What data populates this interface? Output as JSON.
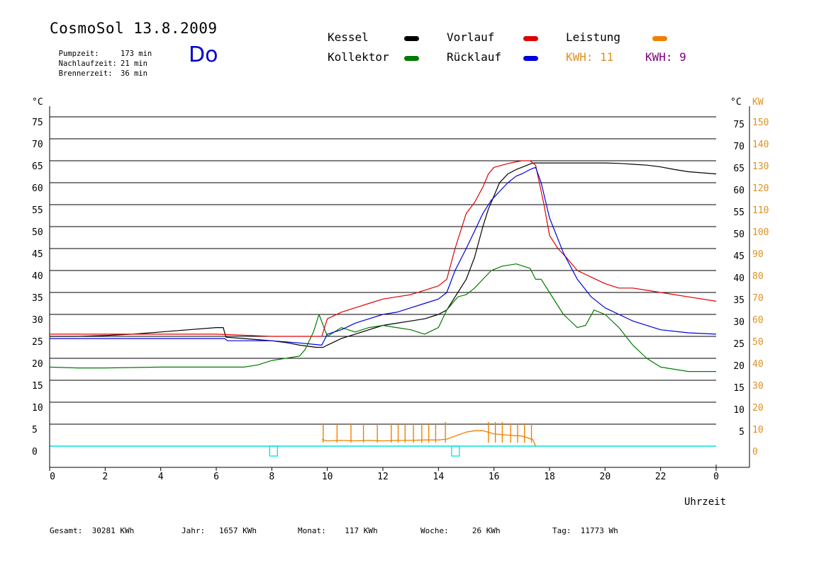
{
  "header": {
    "title": "CosmoSol 13.8.2009",
    "stats": [
      {
        "label": "Pumpzeit:",
        "value": "173 min"
      },
      {
        "label": "Nachlaufzeit:",
        "value": "21 min"
      },
      {
        "label": "Brennerzeit:",
        "value": "36 min"
      }
    ],
    "day": "Do"
  },
  "legend": {
    "kessel": "Kessel",
    "kollektor": "Kollektor",
    "vorlauf": "Vorlauf",
    "ruecklauf": "Rücklauf",
    "leistung": "Leistung",
    "kwh_orange": "KWH: 11",
    "kwh_purple": "KWH: 9"
  },
  "footer": {
    "gesamt": "Gesamt:  30281 KWh",
    "jahr": "Jahr:   1657 KWh",
    "monat": "Monat:    117 KWh",
    "woche": "Woche:     26 KWh",
    "tag": "Tag:  11773 Wh"
  },
  "colors": {
    "kessel": "#000000",
    "kollektor": "#007a00",
    "vorlauf": "#e00000",
    "ruecklauf": "#0000e0",
    "leistung": "#f08000",
    "kwh_orange": "#e09020",
    "kwh_purple": "#800080",
    "day": "#0000cc",
    "baseline": "#00e0e0",
    "right_axis": "#e09020"
  },
  "chart_data": {
    "type": "line",
    "xlabel": "Uhrzeit",
    "ylabel_left": "°C",
    "ylabel_right_temp": "°C",
    "ylabel_right_power": "KW",
    "xlim": [
      0,
      24
    ],
    "ylim": [
      0,
      80
    ],
    "x_ticks": [
      "0",
      "2",
      "4",
      "6",
      "8",
      "10",
      "12",
      "14",
      "16",
      "18",
      "20",
      "22",
      "0"
    ],
    "y_ticks_left": [
      "0",
      "5",
      "10",
      "15",
      "20",
      "25",
      "30",
      "35",
      "40",
      "45",
      "50",
      "55",
      "60",
      "65",
      "70",
      "75"
    ],
    "y_ticks_right_temp": [
      "5",
      "10",
      "15",
      "20",
      "25",
      "30",
      "35",
      "40",
      "45",
      "50",
      "55",
      "60",
      "65",
      "70",
      "75"
    ],
    "y_ticks_right_kw": [
      "0",
      "10",
      "20",
      "30",
      "40",
      "50",
      "60",
      "70",
      "80",
      "90",
      "100",
      "110",
      "120",
      "130",
      "140",
      "150"
    ],
    "grid": true,
    "series": [
      {
        "name": "Kessel",
        "x": [
          0,
          1,
          2,
          3,
          4,
          5,
          6,
          6.25,
          6.35,
          7,
          8,
          8.6,
          9,
          9.6,
          9.85,
          10,
          10.5,
          11,
          11.5,
          12,
          12.5,
          13,
          13.5,
          14,
          14.3,
          14.6,
          15,
          15.3,
          15.6,
          15.8,
          16,
          16.2,
          16.5,
          16.8,
          17,
          17.2,
          17.4,
          17.5,
          18,
          19,
          20,
          20.5,
          21,
          21.5,
          22,
          22.5,
          23,
          24
        ],
        "y": [
          25,
          25,
          25.2,
          25.5,
          26,
          26.5,
          27,
          27,
          24.8,
          24.5,
          24,
          23.5,
          23,
          22.5,
          22.5,
          23,
          24.5,
          25.5,
          26.5,
          27.5,
          28,
          28.5,
          29,
          30,
          31,
          34,
          38,
          43,
          50,
          54,
          57,
          60,
          62,
          63,
          63.5,
          64,
          64.5,
          64.5,
          64.5,
          64.5,
          64.5,
          64.4,
          64.2,
          64,
          63.6,
          63,
          62.5,
          62
        ]
      },
      {
        "name": "Kollektor",
        "x": [
          0,
          1,
          2,
          3,
          4,
          5,
          6,
          7,
          7.5,
          8,
          8.5,
          9,
          9.2,
          9.5,
          9.7,
          10,
          10.5,
          11,
          11.5,
          12,
          12.5,
          13,
          13.5,
          14,
          14.3,
          14.7,
          15,
          15.3,
          15.6,
          15.9,
          16.3,
          16.8,
          17.3,
          17.5,
          17.7,
          18,
          18.5,
          19,
          19.3,
          19.6,
          20,
          20.5,
          21,
          21.5,
          22,
          22.5,
          23,
          24
        ],
        "y": [
          18,
          17.8,
          17.8,
          17.9,
          18,
          18,
          18,
          18,
          18.5,
          19.5,
          20,
          20.5,
          22,
          26,
          30,
          25,
          27,
          26,
          27,
          27.5,
          27,
          26.5,
          25.5,
          27,
          31,
          34,
          34.5,
          36,
          38,
          40,
          41,
          41.5,
          40.5,
          38,
          38,
          35,
          30,
          27,
          27.5,
          31,
          30,
          27,
          23,
          20,
          18,
          17.5,
          17,
          17
        ]
      },
      {
        "name": "Vorlauf",
        "x": [
          0,
          2,
          4,
          6,
          8,
          9.8,
          10,
          10.5,
          11,
          11.5,
          12,
          12.5,
          13,
          13.5,
          14,
          14.3,
          14.6,
          15,
          15.3,
          15.6,
          15.8,
          16,
          16.3,
          16.6,
          17,
          17.3,
          17.5,
          17.8,
          18,
          18.3,
          18.6,
          19,
          19.5,
          20,
          20.5,
          21,
          21.5,
          22,
          22.5,
          23,
          24
        ],
        "y": [
          25.5,
          25.5,
          25.5,
          25.5,
          25,
          25,
          29,
          30.5,
          31.5,
          32.5,
          33.5,
          34,
          34.5,
          35.5,
          36.5,
          38,
          45,
          53,
          55.5,
          59,
          62,
          63.5,
          64,
          64.5,
          65,
          65,
          64,
          55,
          48,
          45,
          43,
          40,
          38.5,
          37,
          36,
          36,
          35.5,
          35,
          34.5,
          34,
          33
        ]
      },
      {
        "name": "Rücklauf",
        "x": [
          0,
          2,
          4,
          6,
          6.3,
          6.4,
          8,
          9,
          9.8,
          10,
          10.5,
          11,
          11.5,
          12,
          12.5,
          13,
          13.5,
          14,
          14.3,
          14.6,
          15,
          15.3,
          15.6,
          15.9,
          16.2,
          16.5,
          16.8,
          17,
          17.3,
          17.5,
          17.7,
          18,
          18.5,
          19,
          19.5,
          20,
          20.5,
          21,
          22,
          23,
          24
        ],
        "y": [
          24.5,
          24.5,
          24.5,
          24.5,
          24.5,
          24,
          24,
          23.5,
          23,
          25.5,
          26.5,
          28,
          29,
          30,
          30.5,
          31.5,
          32.5,
          33.5,
          35,
          40,
          45,
          49,
          53,
          56,
          58,
          60,
          61.5,
          62,
          63,
          63.5,
          60,
          52,
          44,
          38,
          34,
          31.5,
          30,
          28.5,
          26.5,
          25.8,
          25.5
        ]
      },
      {
        "name": "Leistung",
        "x": [
          9.8,
          10,
          10.5,
          11,
          11.5,
          12,
          12.5,
          13,
          13.5,
          14,
          14.3,
          14.7,
          15,
          15.3,
          15.6,
          16,
          16.5,
          17,
          17.4,
          17.5
        ],
        "y": [
          1.5,
          1.2,
          1.3,
          1.2,
          1.3,
          1.2,
          1.3,
          1.3,
          1.4,
          1.4,
          1.6,
          2.5,
          3.2,
          3.5,
          3.5,
          2.8,
          2.5,
          2.3,
          1.5,
          0
        ]
      },
      {
        "name": "Leistung (Spitzen)",
        "x": [
          9.85,
          10.35,
          10.85,
          11.3,
          11.8,
          12.3,
          12.55,
          12.8,
          13.1,
          13.4,
          13.65,
          13.9,
          14.25,
          15.8,
          16.05,
          16.3,
          16.6,
          16.85,
          17.1,
          17.35
        ],
        "y": [
          5,
          5,
          5,
          5,
          5,
          5,
          5,
          5,
          5,
          5,
          5,
          5,
          5.5,
          5.5,
          5.5,
          5.5,
          5,
          5,
          5,
          5
        ]
      }
    ]
  }
}
